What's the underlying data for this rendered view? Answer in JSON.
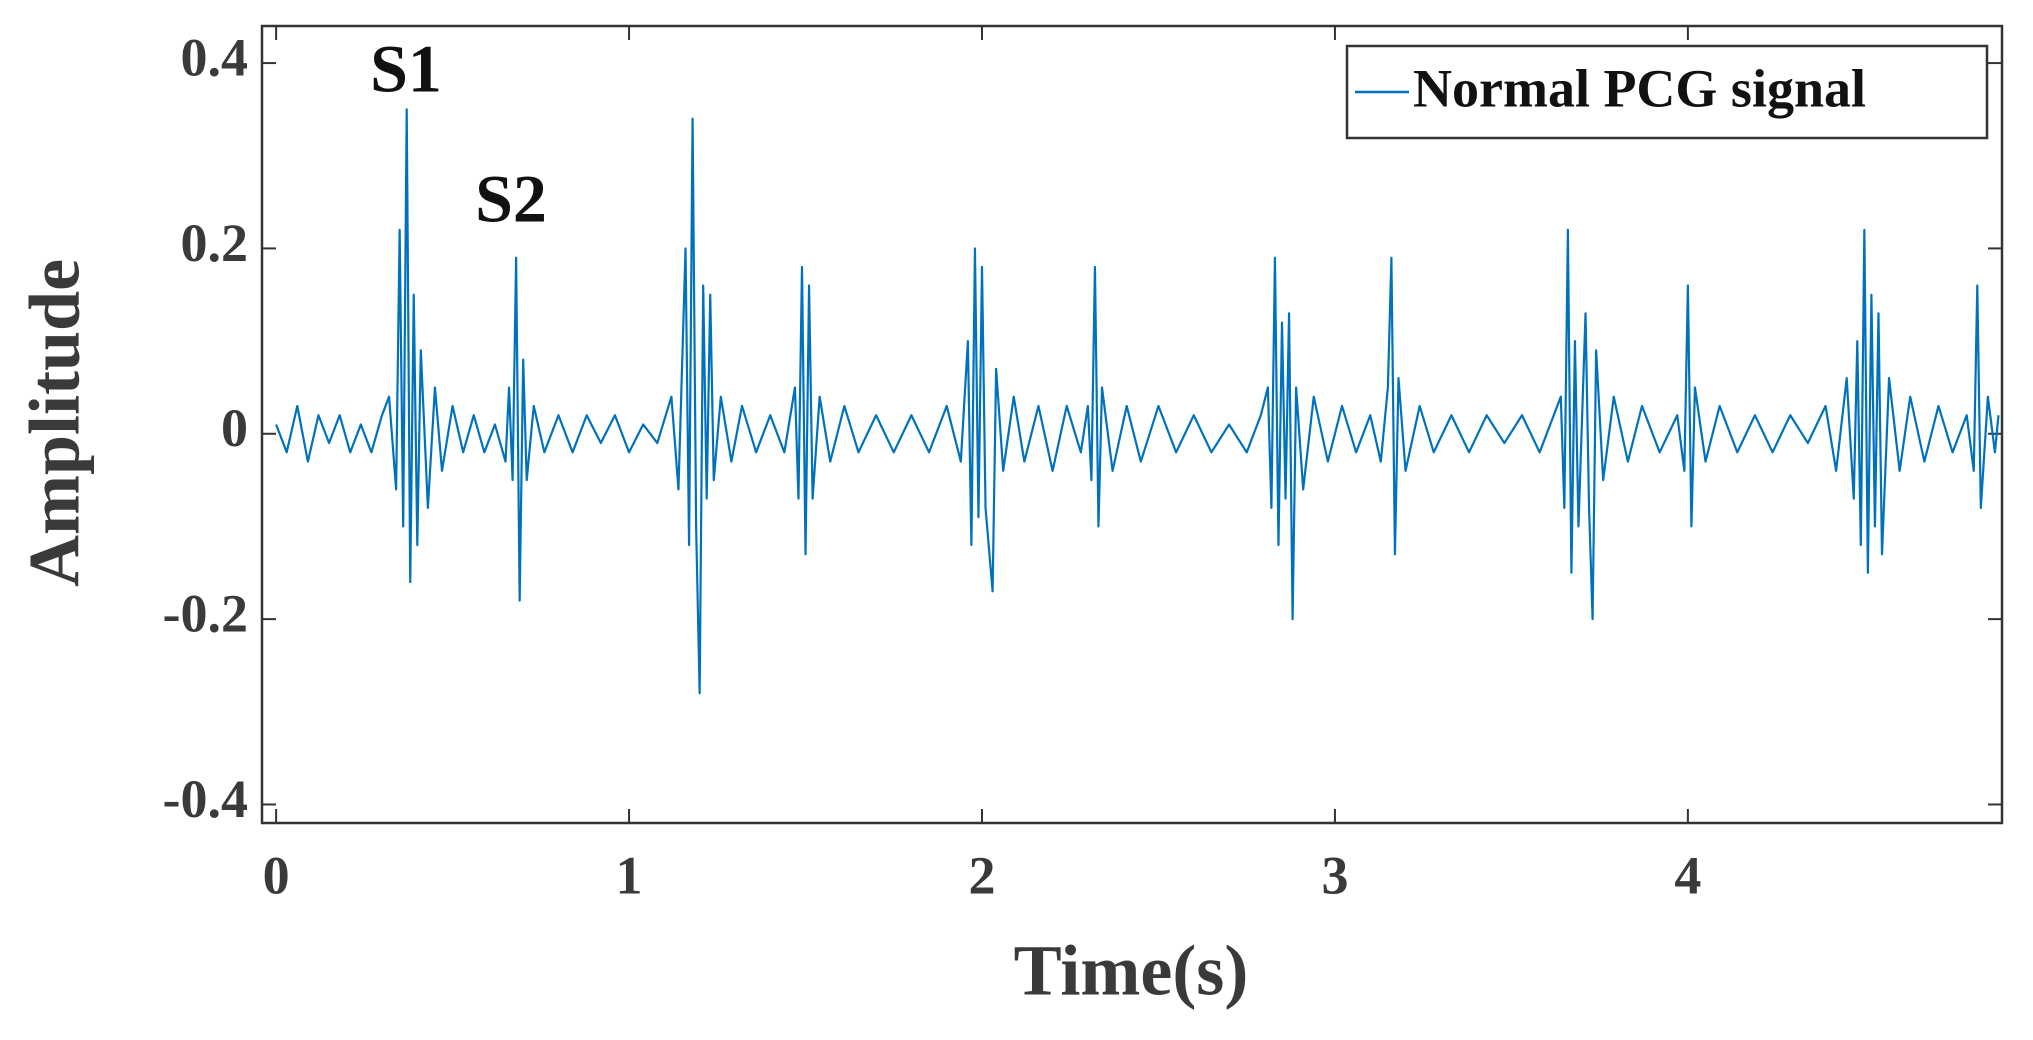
{
  "chart_data": {
    "type": "line",
    "xlabel": "Time(s)",
    "ylabel": "Amplitude",
    "annotations": [
      "S1",
      "S2"
    ],
    "legend": "upper right",
    "xlim": [
      -0.04,
      4.89
    ],
    "ylim": [
      -0.42,
      0.44
    ],
    "xticks": [
      0,
      1,
      2,
      3,
      4
    ],
    "yticks": [
      -0.4,
      -0.2,
      0,
      0.2,
      0.4
    ],
    "x": [
      0,
      0.03,
      0.06,
      0.09,
      0.12,
      0.15,
      0.18,
      0.21,
      0.24,
      0.27,
      0.3,
      0.32,
      0.34,
      0.35,
      0.36,
      0.37,
      0.38,
      0.39,
      0.4,
      0.41,
      0.43,
      0.45,
      0.47,
      0.5,
      0.53,
      0.56,
      0.59,
      0.62,
      0.65,
      0.66,
      0.67,
      0.68,
      0.69,
      0.7,
      0.71,
      0.73,
      0.76,
      0.8,
      0.84,
      0.88,
      0.92,
      0.96,
      1.0,
      1.04,
      1.08,
      1.12,
      1.14,
      1.16,
      1.17,
      1.18,
      1.19,
      1.2,
      1.21,
      1.22,
      1.23,
      1.24,
      1.26,
      1.29,
      1.32,
      1.36,
      1.4,
      1.44,
      1.47,
      1.48,
      1.49,
      1.5,
      1.51,
      1.52,
      1.54,
      1.57,
      1.61,
      1.65,
      1.7,
      1.75,
      1.8,
      1.85,
      1.9,
      1.94,
      1.96,
      1.97,
      1.98,
      1.99,
      2.0,
      2.01,
      2.03,
      2.04,
      2.06,
      2.09,
      2.12,
      2.16,
      2.2,
      2.24,
      2.28,
      2.3,
      2.31,
      2.32,
      2.33,
      2.34,
      2.37,
      2.41,
      2.45,
      2.5,
      2.55,
      2.6,
      2.65,
      2.7,
      2.75,
      2.79,
      2.81,
      2.82,
      2.83,
      2.84,
      2.85,
      2.86,
      2.87,
      2.88,
      2.89,
      2.91,
      2.94,
      2.98,
      3.02,
      3.06,
      3.1,
      3.13,
      3.15,
      3.16,
      3.17,
      3.18,
      3.2,
      3.24,
      3.28,
      3.33,
      3.38,
      3.43,
      3.48,
      3.53,
      3.58,
      3.62,
      3.64,
      3.65,
      3.66,
      3.67,
      3.68,
      3.69,
      3.71,
      3.72,
      3.73,
      3.74,
      3.76,
      3.79,
      3.83,
      3.87,
      3.92,
      3.97,
      3.99,
      4.0,
      4.01,
      4.02,
      4.05,
      4.09,
      4.14,
      4.19,
      4.24,
      4.29,
      4.34,
      4.39,
      4.42,
      4.45,
      4.47,
      4.48,
      4.49,
      4.5,
      4.51,
      4.52,
      4.53,
      4.54,
      4.55,
      4.57,
      4.6,
      4.63,
      4.67,
      4.71,
      4.75,
      4.79,
      4.81,
      4.82,
      4.83,
      4.85,
      4.87,
      4.88
    ],
    "series": [
      {
        "name": "Normal PCG signal",
        "color": "#0072bd",
        "values": [
          0.01,
          -0.02,
          0.03,
          -0.03,
          0.02,
          -0.01,
          0.02,
          -0.02,
          0.01,
          -0.02,
          0.02,
          0.04,
          -0.06,
          0.22,
          -0.1,
          0.35,
          -0.16,
          0.15,
          -0.12,
          0.09,
          -0.08,
          0.05,
          -0.04,
          0.03,
          -0.02,
          0.02,
          -0.02,
          0.01,
          -0.03,
          0.05,
          -0.05,
          0.19,
          -0.18,
          0.08,
          -0.05,
          0.03,
          -0.02,
          0.02,
          -0.02,
          0.02,
          -0.01,
          0.02,
          -0.02,
          0.01,
          -0.01,
          0.04,
          -0.06,
          0.2,
          -0.12,
          0.34,
          -0.1,
          -0.28,
          0.16,
          -0.07,
          0.15,
          -0.05,
          0.04,
          -0.03,
          0.03,
          -0.02,
          0.02,
          -0.02,
          0.05,
          -0.07,
          0.18,
          -0.13,
          0.16,
          -0.07,
          0.04,
          -0.03,
          0.03,
          -0.02,
          0.02,
          -0.02,
          0.02,
          -0.02,
          0.03,
          -0.03,
          0.1,
          -0.12,
          0.2,
          -0.09,
          0.18,
          -0.08,
          -0.17,
          0.07,
          -0.04,
          0.04,
          -0.03,
          0.03,
          -0.04,
          0.03,
          -0.02,
          0.03,
          -0.05,
          0.18,
          -0.1,
          0.05,
          -0.04,
          0.03,
          -0.03,
          0.03,
          -0.02,
          0.02,
          -0.02,
          0.01,
          -0.02,
          0.02,
          0.05,
          -0.08,
          0.19,
          -0.12,
          0.12,
          -0.07,
          0.13,
          -0.2,
          0.05,
          -0.06,
          0.04,
          -0.03,
          0.03,
          -0.02,
          0.02,
          -0.03,
          0.05,
          0.19,
          -0.13,
          0.06,
          -0.04,
          0.03,
          -0.02,
          0.02,
          -0.02,
          0.02,
          -0.01,
          0.02,
          -0.02,
          0.02,
          0.04,
          -0.08,
          0.22,
          -0.15,
          0.1,
          -0.1,
          0.13,
          -0.08,
          -0.2,
          0.09,
          -0.05,
          0.04,
          -0.03,
          0.03,
          -0.02,
          0.02,
          -0.04,
          0.16,
          -0.1,
          0.05,
          -0.03,
          0.03,
          -0.02,
          0.02,
          -0.02,
          0.02,
          -0.01,
          0.03,
          -0.04,
          0.06,
          -0.07,
          0.1,
          -0.12,
          0.22,
          -0.15,
          0.15,
          -0.1,
          0.13,
          -0.13,
          0.06,
          -0.04,
          0.04,
          -0.03,
          0.03,
          -0.02,
          0.02,
          -0.04,
          0.16,
          -0.08,
          0.04,
          -0.02,
          0.02
        ]
      }
    ]
  }
}
